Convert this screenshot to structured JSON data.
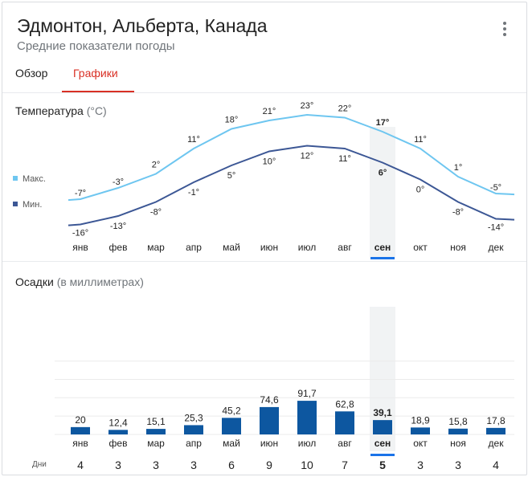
{
  "header": {
    "title": "Эдмонтон, Альберта, Канада",
    "subtitle": "Средние показатели погоды"
  },
  "tabs": [
    {
      "label": "Обзор",
      "active": false
    },
    {
      "label": "Графики",
      "active": true
    }
  ],
  "temperature": {
    "title": "Температура",
    "unit": "(°C)",
    "legend": {
      "max": "Макс.",
      "min": "Мин."
    }
  },
  "precipitation": {
    "title": "Осадки",
    "unit": "(в миллиметрах)"
  },
  "days_label": "Дни",
  "colors": {
    "max_line": "#6ec6f0",
    "min_line": "#3c5795",
    "bar": "#0d57a0",
    "selected": "#1a73e8",
    "accent": "#d93025"
  },
  "selected_month_index": 8,
  "chart_data": [
    {
      "type": "line",
      "title": "Температура (°C)",
      "categories": [
        "янв",
        "фев",
        "мар",
        "апр",
        "май",
        "июн",
        "июл",
        "авг",
        "сен",
        "окт",
        "ноя",
        "дек"
      ],
      "series": [
        {
          "name": "Макс.",
          "values": [
            -7,
            -3,
            2,
            11,
            18,
            21,
            23,
            22,
            17,
            11,
            1,
            -5
          ],
          "labels": [
            "-7°",
            "-3°",
            "2°",
            "11°",
            "18°",
            "21°",
            "23°",
            "22°",
            "17°",
            "11°",
            "1°",
            "-5°"
          ]
        },
        {
          "name": "Мин.",
          "values": [
            -16,
            -13,
            -8,
            -1,
            5,
            10,
            12,
            11,
            6,
            0,
            -8,
            -14
          ],
          "labels": [
            "-16°",
            "-13°",
            "-8°",
            "-1°",
            "5°",
            "10°",
            "12°",
            "11°",
            "6°",
            "0°",
            "-8°",
            "-14°"
          ]
        }
      ]
    },
    {
      "type": "bar",
      "title": "Осадки (в миллиметрах)",
      "categories": [
        "янв",
        "фев",
        "мар",
        "апр",
        "май",
        "июн",
        "июл",
        "авг",
        "сен",
        "окт",
        "ноя",
        "дек"
      ],
      "values": [
        20,
        12.4,
        15.1,
        25.3,
        45.2,
        74.6,
        91.7,
        62.8,
        39.1,
        18.9,
        15.8,
        17.8
      ],
      "labels": [
        "20",
        "12,4",
        "15,1",
        "25,3",
        "45,2",
        "74,6",
        "91,7",
        "62,8",
        "39,1",
        "18,9",
        "15,8",
        "17,8"
      ],
      "days": [
        "4",
        "3",
        "3",
        "3",
        "6",
        "9",
        "10",
        "7",
        "5",
        "3",
        "3",
        "4"
      ],
      "ylim": [
        0,
        200
      ],
      "grid": true
    }
  ]
}
